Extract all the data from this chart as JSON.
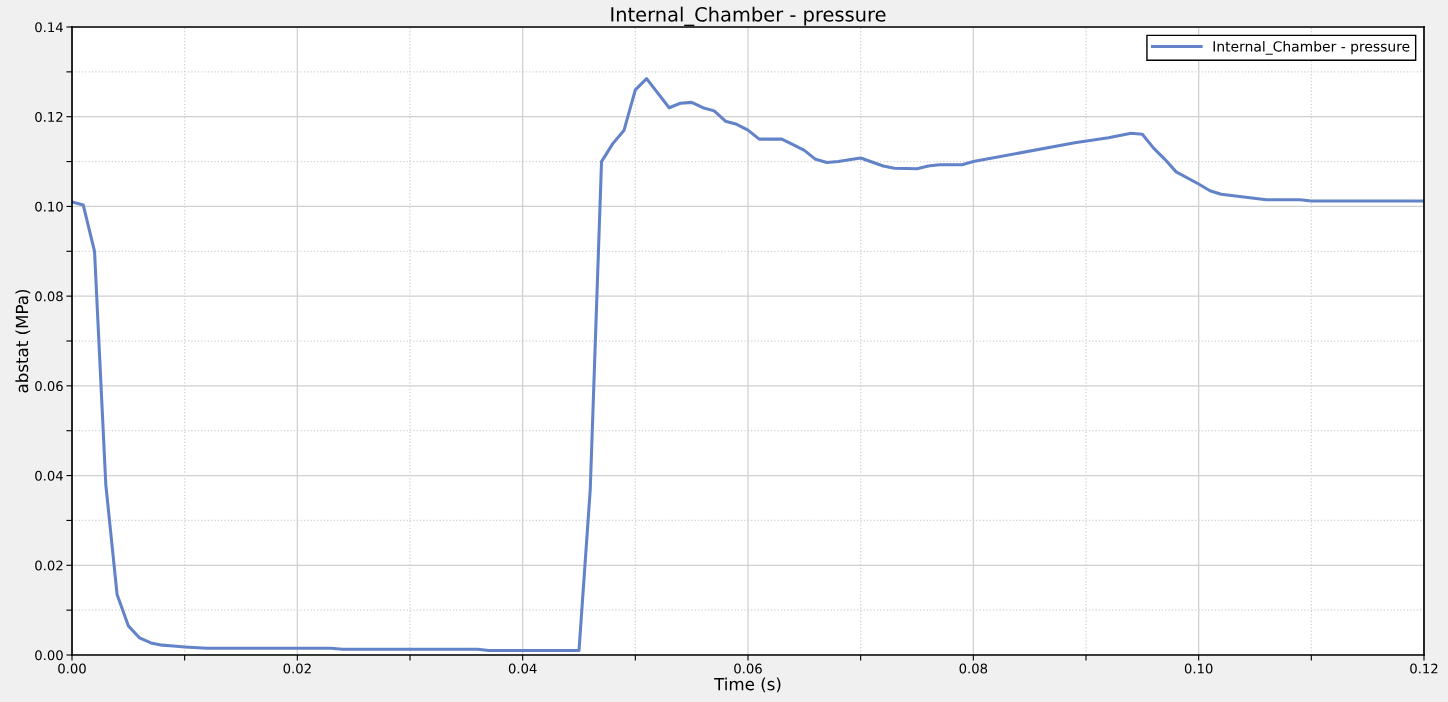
{
  "chart_data": {
    "type": "line",
    "title": "Internal_Chamber - pressure",
    "xlabel": "Time (s)",
    "ylabel": "abstat (MPa)",
    "xlim": [
      0,
      0.12
    ],
    "ylim": [
      0,
      0.14
    ],
    "xticks": [
      {
        "value": 0,
        "label": "0.00"
      },
      {
        "value": 0.01,
        "label": null
      },
      {
        "value": 0.02,
        "label": "0.02"
      },
      {
        "value": 0.03,
        "label": null
      },
      {
        "value": 0.04,
        "label": "0.04"
      },
      {
        "value": 0.05,
        "label": null
      },
      {
        "value": 0.06,
        "label": "0.06"
      },
      {
        "value": 0.07,
        "label": null
      },
      {
        "value": 0.08,
        "label": "0.08"
      },
      {
        "value": 0.09,
        "label": null
      },
      {
        "value": 0.1,
        "label": "0.10"
      },
      {
        "value": 0.11,
        "label": null
      },
      {
        "value": 0.12,
        "label": "0.12"
      }
    ],
    "yticks": [
      {
        "value": 0,
        "label": "0.00"
      },
      {
        "value": 0.01,
        "label": null
      },
      {
        "value": 0.02,
        "label": "0.02"
      },
      {
        "value": 0.03,
        "label": null
      },
      {
        "value": 0.04,
        "label": "0.04"
      },
      {
        "value": 0.05,
        "label": null
      },
      {
        "value": 0.06,
        "label": "0.06"
      },
      {
        "value": 0.07,
        "label": null
      },
      {
        "value": 0.08,
        "label": "0.08"
      },
      {
        "value": 0.09,
        "label": null
      },
      {
        "value": 0.1,
        "label": "0.10"
      },
      {
        "value": 0.11,
        "label": null
      },
      {
        "value": 0.12,
        "label": "0.12"
      },
      {
        "value": 0.13,
        "label": null
      },
      {
        "value": 0.14,
        "label": "0.14"
      }
    ],
    "grid": true,
    "legend": "top right",
    "marker": "none",
    "line_style": "solid",
    "series": [
      {
        "name": "Internal_Chamber - pressure",
        "color": "#6383c8",
        "x": [
          0,
          0.001,
          0.002,
          0.003,
          0.004,
          0.005,
          0.006,
          0.007,
          0.008,
          0.009,
          0.01,
          0.012,
          0.023,
          0.024,
          0.036,
          0.037,
          0.045,
          0.046,
          0.047,
          0.048,
          0.049,
          0.05,
          0.051,
          0.053,
          0.054,
          0.055,
          0.056,
          0.057,
          0.058,
          0.059,
          0.06,
          0.061,
          0.063,
          0.064,
          0.065,
          0.066,
          0.067,
          0.068,
          0.07,
          0.072,
          0.073,
          0.075,
          0.076,
          0.077,
          0.079,
          0.08,
          0.089,
          0.092,
          0.094,
          0.095,
          0.096,
          0.097,
          0.098,
          0.1,
          0.101,
          0.102,
          0.104,
          0.106,
          0.109,
          0.11,
          0.12
        ],
        "values": [
          0.101,
          0.1003,
          0.09,
          0.038,
          0.0135,
          0.0065,
          0.0038,
          0.0027,
          0.0022,
          0.002,
          0.0018,
          0.0015,
          0.0015,
          0.0013,
          0.0013,
          0.001,
          0.001,
          0.037,
          0.11,
          0.114,
          0.117,
          0.126,
          0.1285,
          0.122,
          0.123,
          0.1232,
          0.122,
          0.1213,
          0.119,
          0.1183,
          0.117,
          0.115,
          0.115,
          0.1138,
          0.1125,
          0.1105,
          0.1098,
          0.11,
          0.1108,
          0.109,
          0.1085,
          0.1084,
          0.109,
          0.1093,
          0.1093,
          0.11,
          0.1142,
          0.1153,
          0.1163,
          0.1161,
          0.113,
          0.1105,
          0.1077,
          0.105,
          0.1035,
          0.1027,
          0.1021,
          0.1015,
          0.1015,
          0.1012,
          0.1012
        ]
      }
    ]
  }
}
